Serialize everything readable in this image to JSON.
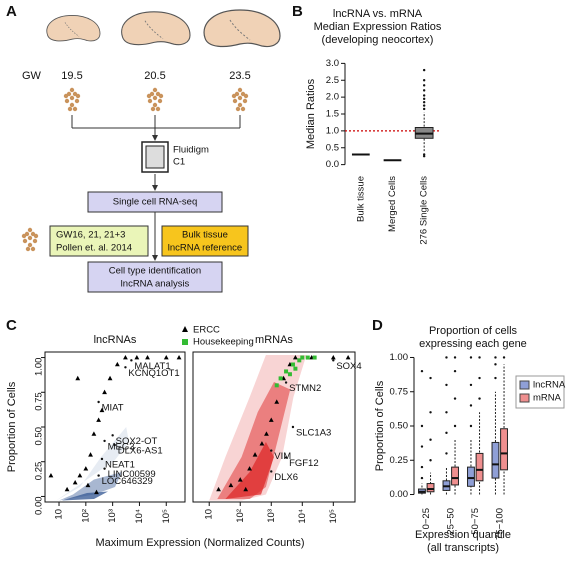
{
  "panel_labels": [
    "A",
    "B",
    "C",
    "D"
  ],
  "diagram": {
    "ages_label": "GW",
    "ages": [
      "19.5",
      "20.5",
      "23.5"
    ],
    "chip_label": [
      "Fluidigm",
      "C1"
    ],
    "sequencing": "Single cell RNA-seq",
    "published": [
      "GW16, 21, 21+3",
      "Pollen et. al. 2014"
    ],
    "reference": [
      "Bulk tissue",
      "lncRNA reference"
    ],
    "analysis": [
      "Cell type identification",
      "lncRNA analysis"
    ]
  },
  "chart_data": [
    {
      "type": "box",
      "title": [
        "lncRNA vs. mRNA",
        "Median Expression Ratios",
        "(developing neocortex)"
      ],
      "y_label": "Median Ratios",
      "categories": [
        "Bulk tissue",
        "Merged Cells",
        "276 Single Cells"
      ],
      "series": [
        {
          "color": "#888888",
          "boxes": [
            {
              "median": 0.3
            },
            {
              "median": 0.13
            },
            {
              "min": 0.4,
              "q1": 0.78,
              "median": 0.92,
              "q3": 1.1,
              "max": 1.55,
              "outliers": [
                1.65,
                1.75,
                1.85,
                1.95,
                2.05,
                2.2,
                2.35,
                2.5,
                2.8,
                0.3,
                0.25
              ]
            }
          ]
        }
      ],
      "ylim": [
        -0.1,
        3.1
      ],
      "yticks": [
        {
          "value": 0,
          "label": "0.0"
        },
        0.5,
        {
          "value": 1,
          "label": "1.0"
        },
        1.5,
        {
          "value": 2,
          "label": "2.0"
        },
        2.5,
        {
          "value": 3,
          "label": "3.0"
        }
      ],
      "reference_line": {
        "value": 1,
        "color": "#cc0000"
      }
    },
    {
      "type": "scatter",
      "title": "lncRNAs",
      "log_x": true,
      "cloud_color": "#3d5f99",
      "x_label": "Maximum Expression (Normalized Counts)",
      "y_label": "Proportion of Cells",
      "xlim": [
        3,
        500000
      ],
      "xticks": [
        10,
        {
          "value": 100,
          "label": "10²"
        },
        {
          "value": 1000,
          "label": "10³"
        },
        {
          "value": 10000,
          "label": "10⁴"
        },
        {
          "value": 100000,
          "label": "10⁵"
        }
      ],
      "ylim": [
        -0.04,
        1.04
      ],
      "yticks": [
        {
          "value": 0,
          "label": "0.00"
        },
        0.25,
        {
          "value": 0.5,
          "label": "0.50"
        },
        0.75,
        {
          "value": 1,
          "label": "1.00"
        }
      ],
      "series": [
        {
          "name": "ERCC",
          "color": "#000000",
          "marker": "triangle",
          "x": [
            20,
            40,
            60,
            100,
            150,
            200,
            300,
            400,
            500,
            800,
            1500,
            3000,
            8000,
            50,
            20000,
            100000,
            300000,
            5,
            250,
            120
          ],
          "y": [
            0.05,
            0.1,
            0.15,
            0.2,
            0.3,
            0.45,
            0.55,
            0.62,
            0.75,
            0.85,
            0.95,
            1,
            1,
            0.85,
            1,
            1,
            1,
            0.15,
            0.03,
            0.08
          ]
        }
      ],
      "annotations": [
        {
          "label": "MALAT1",
          "x": 5000,
          "y": 0.98
        },
        {
          "label": "KCNQ1OT1",
          "x": 3000,
          "y": 0.93
        },
        {
          "label": "MIAT",
          "x": 300,
          "y": 0.68
        },
        {
          "label": "SOX2-OT",
          "x": 1000,
          "y": 0.44
        },
        {
          "label": "MEG3",
          "x": 500,
          "y": 0.4
        },
        {
          "label": "DLX6-AS1",
          "x": 1200,
          "y": 0.37
        },
        {
          "label": "NEAT1",
          "x": 400,
          "y": 0.27
        },
        {
          "label": "LINC00599",
          "x": 500,
          "y": 0.2
        },
        {
          "label": "LOC646329",
          "x": 300,
          "y": 0.15
        }
      ]
    },
    {
      "type": "scatter",
      "title": "mRNAs",
      "log_x": true,
      "cloud_color": "#dd2a2a",
      "xlim": [
        3,
        500000
      ],
      "xticks": [
        10,
        {
          "value": 100,
          "label": "10²"
        },
        {
          "value": 1000,
          "label": "10³"
        },
        {
          "value": 10000,
          "label": "10⁴"
        },
        {
          "value": 100000,
          "label": "10⁵"
        }
      ],
      "ylim": [
        -0.04,
        1.04
      ],
      "series": [
        {
          "color": "#000000",
          "marker": "triangle",
          "x": [
            20,
            50,
            100,
            200,
            300,
            500,
            700,
            1000,
            1500,
            2500,
            4000,
            6000,
            20000,
            100000,
            300000,
            150
          ],
          "y": [
            0.05,
            0.08,
            0.12,
            0.2,
            0.3,
            0.38,
            0.45,
            0.55,
            0.68,
            0.85,
            0.95,
            1,
            1,
            1,
            1,
            0.05
          ]
        },
        {
          "name": "Housekeeping",
          "color": "#33bb33",
          "marker": "square",
          "x": [
            3000,
            5000,
            8000,
            10000,
            2000,
            4000,
            15000,
            6000,
            1500,
            25000
          ],
          "y": [
            0.9,
            0.95,
            0.98,
            1,
            0.85,
            0.88,
            1,
            0.92,
            0.8,
            1
          ]
        }
      ],
      "annotations": [
        {
          "label": "SOX4",
          "x": 100000,
          "y": 0.98
        },
        {
          "label": "STMN2",
          "x": 3000,
          "y": 0.82
        },
        {
          "label": "SLC1A3",
          "x": 5000,
          "y": 0.5
        },
        {
          "label": "VIM",
          "x": 1000,
          "y": 0.33
        },
        {
          "label": "FGF12",
          "x": 3000,
          "y": 0.28
        },
        {
          "label": "DLX6",
          "x": 1000,
          "y": 0.18
        }
      ]
    },
    {
      "type": "box",
      "title": [
        "Proportion of cells",
        "expressing each gene"
      ],
      "y_label": "Proportion of Cells",
      "x_label": [
        "Expression quantile",
        "(all transcripts)"
      ],
      "categories": [
        "0−25",
        "25−50",
        "50−75",
        "75−100"
      ],
      "legend": "right",
      "ylim": [
        -0.04,
        1.04
      ],
      "yticks": [
        {
          "value": 0,
          "label": "0.00"
        },
        0.25,
        {
          "value": 0.5,
          "label": "0.50"
        },
        0.75,
        {
          "value": 1,
          "label": "1.00"
        }
      ],
      "series": [
        {
          "name": "lncRNA",
          "color": "#8f9fd6",
          "boxes": [
            {
              "min": 0,
              "q1": 0.01,
              "median": 0.02,
              "q3": 0.04,
              "max": 0.08,
              "outliers": [
                0.12,
                0.2,
                0.35,
                0.5,
                0.9
              ]
            },
            {
              "min": 0,
              "q1": 0.03,
              "median": 0.06,
              "q3": 0.1,
              "max": 0.2,
              "outliers": [
                0.3,
                0.45,
                0.6,
                0.8,
                1
              ]
            },
            {
              "min": 0,
              "q1": 0.06,
              "median": 0.12,
              "q3": 0.2,
              "max": 0.4,
              "outliers": [
                0.5,
                0.65,
                0.8,
                1
              ]
            },
            {
              "min": 0,
              "q1": 0.12,
              "median": 0.22,
              "q3": 0.38,
              "max": 0.75,
              "outliers": [
                0.85,
                0.95,
                1
              ]
            }
          ]
        },
        {
          "name": "mRNA",
          "color": "#ef8f8f",
          "boxes": [
            {
              "min": 0,
              "q1": 0.02,
              "median": 0.04,
              "q3": 0.08,
              "max": 0.16,
              "outliers": [
                0.25,
                0.4,
                0.6,
                0.85
              ]
            },
            {
              "min": 0,
              "q1": 0.07,
              "median": 0.12,
              "q3": 0.2,
              "max": 0.4,
              "outliers": [
                0.5,
                0.7,
                0.9,
                1
              ]
            },
            {
              "min": 0,
              "q1": 0.1,
              "median": 0.18,
              "q3": 0.3,
              "max": 0.6,
              "outliers": [
                0.7,
                0.85,
                1
              ]
            },
            {
              "min": 0,
              "q1": 0.18,
              "median": 0.3,
              "q3": 0.48,
              "max": 0.95,
              "outliers": [
                1
              ]
            }
          ]
        }
      ]
    }
  ]
}
